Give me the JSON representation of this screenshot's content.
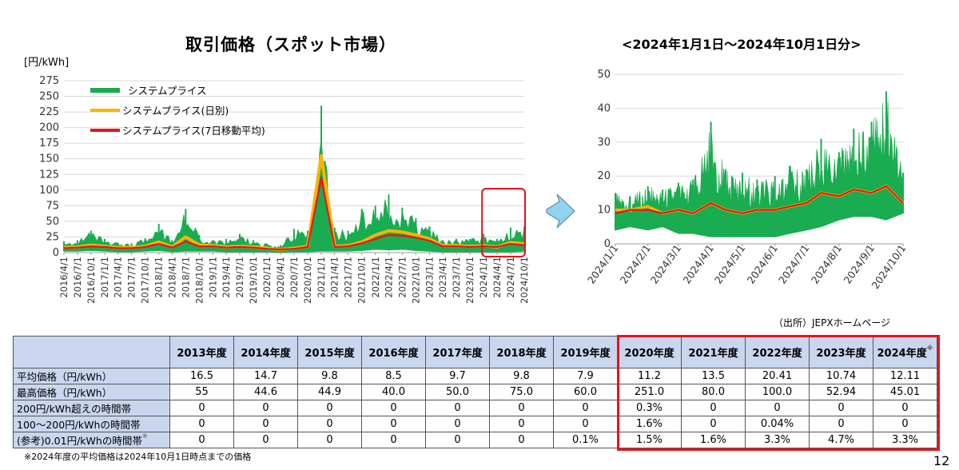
{
  "header": {
    "main_title": "取引価格（スポット市場）",
    "zoom_title": "<2024年1月1日～2024年10月1日分>",
    "unit_label": "[円/kWh]",
    "source": "（出所）JEPXホームページ",
    "page_number": "12",
    "footnote": "※2024年度の平均価格は2024年10月1日時点までの価格"
  },
  "colors": {
    "system_price": "#1aac50",
    "daily": "#f7b500",
    "moving_avg": "#e8131b",
    "table_header": "#c9d6ee",
    "highlight_box": "#e8131b",
    "arrow": "#8fd3ec"
  },
  "chart_data": [
    {
      "type": "line",
      "title": "取引価格（スポット市場）",
      "ylabel": "[円/kWh]",
      "ylim": [
        0,
        275
      ],
      "yticks": [
        0,
        25,
        50,
        75,
        100,
        125,
        150,
        175,
        200,
        225,
        250,
        275
      ],
      "xticks": [
        "2016/4/1",
        "2016/7/1",
        "2016/10/1",
        "2017/1/1",
        "2017/4/1",
        "2017/7/1",
        "2017/10/1",
        "2018/1/1",
        "2018/4/1",
        "2018/7/1",
        "2018/10/1",
        "2019/1/1",
        "2019/4/1",
        "2019/7/1",
        "2019/10/1",
        "2020/1/1",
        "2020/4/1",
        "2020/7/1",
        "2020/10/1",
        "2021/1/1",
        "2021/4/1",
        "2021/7/1",
        "2021/10/1",
        "2022/1/1",
        "2022/4/1",
        "2022/7/1",
        "2022/10/1",
        "2023/1/1",
        "2023/4/1",
        "2023/7/1",
        "2023/10/1",
        "2024/1/1",
        "2024/4/1",
        "2024/7/1",
        "2024/10/1"
      ],
      "legend": [
        "システムプライス",
        "システムプライス(日別)",
        "システムプライス(7日移動平均)"
      ],
      "legend_position": "top-left",
      "highlight_range": [
        "2024/1/1",
        "2024/10/1"
      ],
      "series": [
        {
          "name": "システムプライス",
          "color": "#1aac50",
          "x": [
            "2016/4/1",
            "2016/7/1",
            "2016/10/1",
            "2017/1/1",
            "2017/4/1",
            "2017/7/1",
            "2017/10/1",
            "2018/1/1",
            "2018/4/1",
            "2018/7/1",
            "2018/10/1",
            "2019/1/1",
            "2019/4/1",
            "2019/7/1",
            "2019/10/1",
            "2020/1/1",
            "2020/4/1",
            "2020/7/1",
            "2020/10/1",
            "2021/1/1",
            "2021/4/1",
            "2021/7/1",
            "2021/10/1",
            "2022/1/1",
            "2022/4/1",
            "2022/7/1",
            "2022/10/1",
            "2023/1/1",
            "2023/4/1",
            "2023/7/1",
            "2023/10/1",
            "2024/1/1",
            "2024/4/1",
            "2024/7/1",
            "2024/10/1"
          ],
          "high": [
            18,
            20,
            35,
            22,
            16,
            15,
            23,
            46,
            20,
            70,
            28,
            20,
            22,
            30,
            20,
            14,
            12,
            38,
            35,
            235,
            40,
            35,
            70,
            75,
            93,
            72,
            55,
            42,
            20,
            22,
            22,
            30,
            22,
            40,
            42
          ],
          "low": [
            2,
            2,
            3,
            2,
            1,
            1,
            2,
            3,
            1,
            2,
            2,
            2,
            1,
            1,
            1,
            1,
            0,
            1,
            1,
            2,
            2,
            2,
            3,
            5,
            4,
            5,
            3,
            2,
            1,
            1,
            1,
            1,
            1,
            1,
            2
          ]
        },
        {
          "name": "システムプライス(日別)",
          "color": "#f7b500",
          "x": [
            "2016/4/1",
            "2016/7/1",
            "2016/10/1",
            "2017/1/1",
            "2017/4/1",
            "2017/7/1",
            "2017/10/1",
            "2018/1/1",
            "2018/4/1",
            "2018/7/1",
            "2018/10/1",
            "2019/1/1",
            "2019/4/1",
            "2019/7/1",
            "2019/10/1",
            "2020/1/1",
            "2020/4/1",
            "2020/7/1",
            "2020/10/1",
            "2021/1/1",
            "2021/4/1",
            "2021/7/1",
            "2021/10/1",
            "2022/1/1",
            "2022/4/1",
            "2022/7/1",
            "2022/10/1",
            "2023/1/1",
            "2023/4/1",
            "2023/7/1",
            "2023/10/1",
            "2024/1/1",
            "2024/4/1",
            "2024/7/1",
            "2024/10/1"
          ],
          "values": [
            8,
            9,
            12,
            10,
            8,
            8,
            10,
            17,
            9,
            25,
            12,
            11,
            9,
            10,
            9,
            7,
            5,
            7,
            10,
            155,
            10,
            11,
            17,
            28,
            35,
            33,
            28,
            22,
            11,
            11,
            10,
            11,
            9,
            16,
            14
          ]
        },
        {
          "name": "システムプライス(7日移動平均)",
          "color": "#e8131b",
          "x": [
            "2016/4/1",
            "2016/7/1",
            "2016/10/1",
            "2017/1/1",
            "2017/4/1",
            "2017/7/1",
            "2017/10/1",
            "2018/1/1",
            "2018/4/1",
            "2018/7/1",
            "2018/10/1",
            "2019/1/1",
            "2019/4/1",
            "2019/7/1",
            "2019/10/1",
            "2020/1/1",
            "2020/4/1",
            "2020/7/1",
            "2020/10/1",
            "2021/1/1",
            "2021/4/1",
            "2021/7/1",
            "2021/10/1",
            "2022/1/1",
            "2022/4/1",
            "2022/7/1",
            "2022/10/1",
            "2023/1/1",
            "2023/4/1",
            "2023/7/1",
            "2023/10/1",
            "2024/1/1",
            "2024/4/1",
            "2024/7/1",
            "2024/10/1"
          ],
          "values": [
            7,
            8,
            10,
            9,
            7,
            7,
            9,
            14,
            8,
            18,
            10,
            10,
            8,
            9,
            8,
            6,
            5,
            6,
            9,
            120,
            9,
            10,
            15,
            22,
            28,
            27,
            24,
            19,
            10,
            10,
            9,
            10,
            9,
            14,
            12
          ]
        }
      ]
    },
    {
      "type": "line",
      "title": "<2024年1月1日～2024年10月1日分>",
      "ylim": [
        0,
        50
      ],
      "yticks": [
        0,
        10,
        20,
        30,
        40,
        50
      ],
      "xticks": [
        "2024/1/1",
        "2024/2/1",
        "2024/3/1",
        "2024/4/1",
        "2024/5/1",
        "2024/6/1",
        "2024/7/1",
        "2024/8/1",
        "2024/9/1",
        "2024/10/1"
      ],
      "series": [
        {
          "name": "システムプライス",
          "color": "#1aac50",
          "x": [
            "2024/1/1",
            "2024/1/15",
            "2024/2/1",
            "2024/2/15",
            "2024/3/1",
            "2024/3/15",
            "2024/4/1",
            "2024/4/15",
            "2024/5/1",
            "2024/5/15",
            "2024/6/1",
            "2024/6/15",
            "2024/7/1",
            "2024/7/15",
            "2024/8/1",
            "2024/8/15",
            "2024/9/1",
            "2024/9/15",
            "2024/10/1"
          ],
          "high": [
            15,
            14,
            17,
            16,
            18,
            19,
            36,
            22,
            21,
            19,
            20,
            23,
            22,
            31,
            27,
            34,
            36,
            45,
            21
          ],
          "low": [
            4,
            5,
            4,
            5,
            3,
            3,
            2,
            2,
            2,
            2,
            2,
            3,
            4,
            5,
            7,
            8,
            8,
            7,
            9
          ]
        },
        {
          "name": "システムプライス(日別)",
          "color": "#f7b500",
          "x": [
            "2024/1/1",
            "2024/1/15",
            "2024/2/1",
            "2024/2/15",
            "2024/3/1",
            "2024/3/15",
            "2024/4/1",
            "2024/4/15",
            "2024/5/1",
            "2024/5/15",
            "2024/6/1",
            "2024/6/15",
            "2024/7/1",
            "2024/7/15",
            "2024/8/1",
            "2024/8/15",
            "2024/9/1",
            "2024/9/15",
            "2024/10/1"
          ],
          "values": [
            10,
            10,
            11,
            9,
            10,
            9,
            12,
            10,
            9,
            10,
            10,
            11,
            12,
            15,
            14,
            16,
            15,
            17,
            12
          ]
        },
        {
          "name": "システムプライス(7日移動平均)",
          "color": "#e8131b",
          "x": [
            "2024/1/1",
            "2024/1/15",
            "2024/2/1",
            "2024/2/15",
            "2024/3/1",
            "2024/3/15",
            "2024/4/1",
            "2024/4/15",
            "2024/5/1",
            "2024/5/15",
            "2024/6/1",
            "2024/6/15",
            "2024/7/1",
            "2024/7/15",
            "2024/8/1",
            "2024/8/15",
            "2024/9/1",
            "2024/9/15",
            "2024/10/1"
          ],
          "values": [
            9,
            10,
            10,
            9,
            10,
            9,
            12,
            10,
            9,
            10,
            10,
            11,
            12,
            15,
            14,
            16,
            15,
            17,
            12
          ]
        }
      ]
    },
    {
      "type": "table",
      "columns": [
        "2013年度",
        "2014年度",
        "2015年度",
        "2016年度",
        "2017年度",
        "2018年度",
        "2019年度",
        "2020年度",
        "2021年度",
        "2022年度",
        "2023年度",
        "2024年度"
      ],
      "column_note_mark": "※",
      "highlight_columns": [
        "2020年度",
        "2021年度",
        "2022年度",
        "2023年度",
        "2024年度"
      ],
      "rows": [
        {
          "label": "平均価格（円/kWh）",
          "note": "",
          "values": [
            "16.5",
            "14.7",
            "9.8",
            "8.5",
            "9.7",
            "9.8",
            "7.9",
            "11.2",
            "13.5",
            "20.41",
            "10.74",
            "12.11"
          ]
        },
        {
          "label": "最高価格（円/kWh）",
          "note": "",
          "values": [
            "55",
            "44.6",
            "44.9",
            "40.0",
            "50.0",
            "75.0",
            "60.0",
            "251.0",
            "80.0",
            "100.0",
            "52.94",
            "45.01"
          ]
        },
        {
          "label": "200円/kWh超えの時間帯",
          "note": "",
          "values": [
            "0",
            "0",
            "0",
            "0",
            "0",
            "0",
            "0",
            "0.3%",
            "0",
            "0",
            "0",
            "0"
          ]
        },
        {
          "label": "100～200円/kWhの時間帯",
          "note": "",
          "values": [
            "0",
            "0",
            "0",
            "0",
            "0",
            "0",
            "0",
            "1.6%",
            "0",
            "0.04%",
            "0",
            "0"
          ]
        },
        {
          "label": "(参考)0.01円/kWhの時間帯",
          "note": "※",
          "values": [
            "0",
            "0",
            "0",
            "0",
            "0",
            "0",
            "0.1%",
            "1.5%",
            "1.6%",
            "3.3%",
            "4.7%",
            "3.3%"
          ]
        }
      ]
    }
  ]
}
